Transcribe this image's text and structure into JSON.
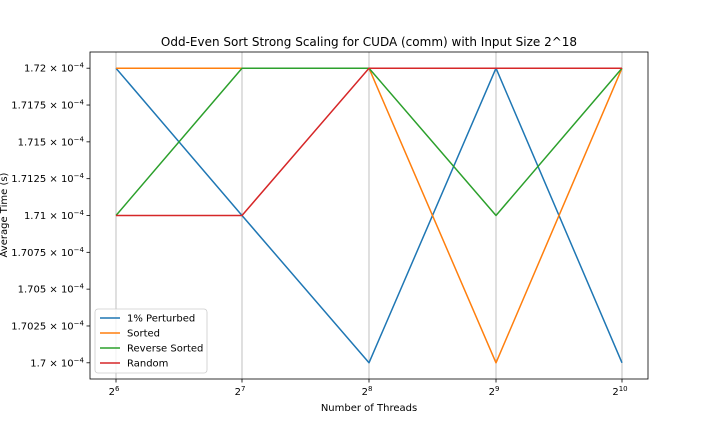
{
  "chart_data": {
    "type": "line",
    "title": "Odd-Even Sort Strong Scaling for CUDA (comm) with Input Size 2^18",
    "xlabel": "Number of Threads",
    "ylabel": "Average Time (s)",
    "x_scale": "log2",
    "x": [
      64,
      128,
      256,
      512,
      1024
    ],
    "x_tick_labels": [
      {
        "base": "2",
        "exp": "6"
      },
      {
        "base": "2",
        "exp": "7"
      },
      {
        "base": "2",
        "exp": "8"
      },
      {
        "base": "2",
        "exp": "9"
      },
      {
        "base": "2",
        "exp": "10"
      }
    ],
    "ylim": [
      0.00016989,
      0.00017211
    ],
    "y_ticks": [
      0.00017,
      0.00017025,
      0.0001705,
      0.00017075,
      0.000171,
      0.00017125,
      0.0001715,
      0.00017175,
      0.000172
    ],
    "y_tick_labels": [
      {
        "mantissa": "1.7",
        "exp": "−4"
      },
      {
        "mantissa": "1.7025",
        "exp": "−4"
      },
      {
        "mantissa": "1.705",
        "exp": "−4"
      },
      {
        "mantissa": "1.7075",
        "exp": "−4"
      },
      {
        "mantissa": "1.71",
        "exp": "−4"
      },
      {
        "mantissa": "1.7125",
        "exp": "−4"
      },
      {
        "mantissa": "1.715",
        "exp": "−4"
      },
      {
        "mantissa": "1.7175",
        "exp": "−4"
      },
      {
        "mantissa": "1.72",
        "exp": "−4"
      }
    ],
    "grid": "vertical",
    "legend_position": "lower-left",
    "series": [
      {
        "name": "1% Perturbed",
        "color": "#1f77b4",
        "values": [
          0.000172,
          0.000171,
          0.00017,
          0.000172,
          0.00017
        ]
      },
      {
        "name": "Sorted",
        "color": "#ff7f0e",
        "values": [
          0.000172,
          0.000172,
          0.000172,
          0.00017,
          0.000172
        ]
      },
      {
        "name": "Reverse Sorted",
        "color": "#2ca02c",
        "values": [
          0.000171,
          0.000172,
          0.000172,
          0.000171,
          0.000172
        ]
      },
      {
        "name": "Random",
        "color": "#d62728",
        "values": [
          0.000171,
          0.000171,
          0.000172,
          0.000172,
          0.000172
        ]
      }
    ]
  }
}
